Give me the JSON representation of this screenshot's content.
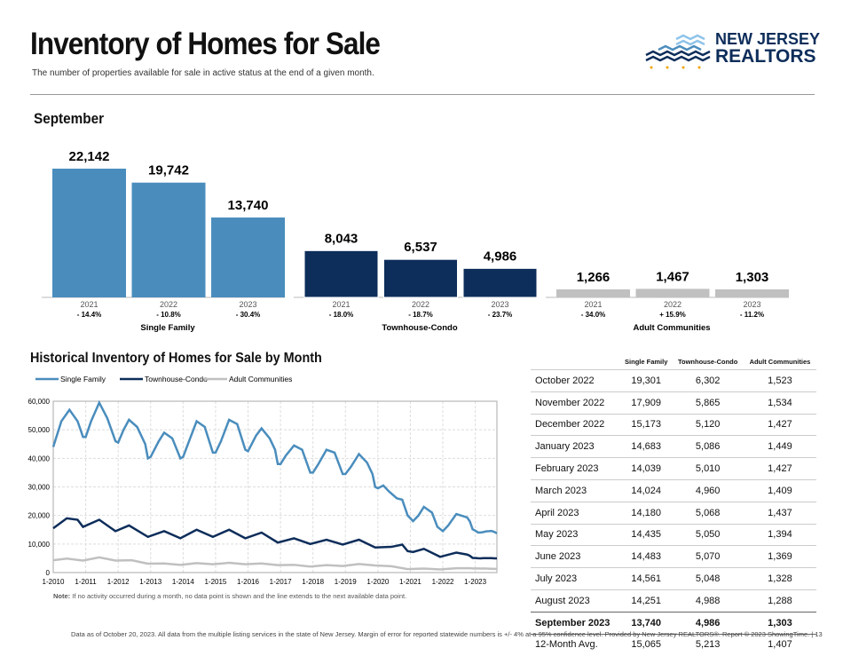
{
  "header": {
    "title": "Inventory of Homes for Sale",
    "subtitle": "The number of properties available for sale in active status at the end of a given month.",
    "logo": "NEW JERSEY REALTORS®"
  },
  "logo": {
    "line1": "NEW JERSEY",
    "line2": "REALTORS"
  },
  "colors": {
    "single_family": "#4a8dbd",
    "townhouse": "#0d2d5a",
    "adult": "#c0c0c0"
  },
  "september": {
    "title": "September"
  },
  "chart_data": [
    {
      "type": "bar",
      "title": "September",
      "groups": [
        {
          "name": "Single Family",
          "years": [
            "2021",
            "2022",
            "2023"
          ],
          "values": [
            22142,
            19742,
            13740
          ],
          "labels": [
            "22,142",
            "19,742",
            "13,740"
          ],
          "changes": [
            "- 14.4%",
            "- 10.8%",
            "- 30.4%"
          ]
        },
        {
          "name": "Townhouse-Condo",
          "years": [
            "2021",
            "2022",
            "2023"
          ],
          "values": [
            8043,
            6537,
            4986
          ],
          "labels": [
            "8,043",
            "6,537",
            "4,986"
          ],
          "changes": [
            "- 18.0%",
            "- 18.7%",
            "- 23.7%"
          ]
        },
        {
          "name": "Adult Communities",
          "years": [
            "2021",
            "2022",
            "2023"
          ],
          "values": [
            1266,
            1467,
            1303
          ],
          "labels": [
            "1,266",
            "1,467",
            "1,303"
          ],
          "changes": [
            "- 34.0%",
            "+ 15.9%",
            "- 11.2%"
          ]
        }
      ]
    },
    {
      "type": "line",
      "title": "Historical Inventory of Homes for Sale by Month",
      "ylim": [
        0,
        60000
      ],
      "grid": true,
      "legend": "top-left",
      "yticks": [
        "0",
        "10,000",
        "20,000",
        "30,000",
        "40,000",
        "50,000",
        "60,000"
      ],
      "xticks": [
        "1-2010",
        "1-2011",
        "1-2012",
        "1-2013",
        "1-2014",
        "1-2015",
        "1-2016",
        "1-2017",
        "1-2018",
        "1-2019",
        "1-2020",
        "1-2021",
        "1-2022",
        "1-2023"
      ],
      "note_label": "Note:",
      "note": "If no activity occurred during a month, no data point is shown and the line extends to the next available data point.",
      "series": [
        {
          "name": "Single Family",
          "points": [
            [
              "2010-01",
              44000
            ],
            [
              "2010-04",
              53000
            ],
            [
              "2010-07",
              57000
            ],
            [
              "2010-10",
              53000
            ],
            [
              "2010-12",
              47500
            ],
            [
              "2011-01",
              47500
            ],
            [
              "2011-03",
              53000
            ],
            [
              "2011-06",
              59500
            ],
            [
              "2011-09",
              54000
            ],
            [
              "2011-12",
              46000
            ],
            [
              "2012-01",
              45500
            ],
            [
              "2012-03",
              50000
            ],
            [
              "2012-05",
              53500
            ],
            [
              "2012-08",
              51000
            ],
            [
              "2012-11",
              45000
            ],
            [
              "2012-12",
              40000
            ],
            [
              "2013-01",
              40500
            ],
            [
              "2013-04",
              46000
            ],
            [
              "2013-06",
              49000
            ],
            [
              "2013-09",
              47000
            ],
            [
              "2013-12",
              40000
            ],
            [
              "2014-01",
              40500
            ],
            [
              "2014-04",
              48000
            ],
            [
              "2014-06",
              53000
            ],
            [
              "2014-09",
              51000
            ],
            [
              "2014-11",
              45000
            ],
            [
              "2014-12",
              42000
            ],
            [
              "2015-01",
              42000
            ],
            [
              "2015-03",
              46000
            ],
            [
              "2015-06",
              53500
            ],
            [
              "2015-09",
              52000
            ],
            [
              "2015-12",
              43000
            ],
            [
              "2016-01",
              42500
            ],
            [
              "2016-04",
              48000
            ],
            [
              "2016-06",
              50500
            ],
            [
              "2016-09",
              47000
            ],
            [
              "2016-11",
              43000
            ],
            [
              "2016-12",
              38000
            ],
            [
              "2017-01",
              38000
            ],
            [
              "2017-03",
              41000
            ],
            [
              "2017-06",
              44500
            ],
            [
              "2017-09",
              43000
            ],
            [
              "2017-12",
              35000
            ],
            [
              "2018-01",
              35000
            ],
            [
              "2018-03",
              38000
            ],
            [
              "2018-06",
              43000
            ],
            [
              "2018-09",
              42000
            ],
            [
              "2018-12",
              34500
            ],
            [
              "2019-01",
              34500
            ],
            [
              "2019-03",
              37000
            ],
            [
              "2019-06",
              41500
            ],
            [
              "2019-09",
              38500
            ],
            [
              "2019-11",
              34500
            ],
            [
              "2019-12",
              30000
            ],
            [
              "2020-01",
              29500
            ],
            [
              "2020-03",
              30500
            ],
            [
              "2020-05",
              28500
            ],
            [
              "2020-08",
              26000
            ],
            [
              "2020-10",
              25500
            ],
            [
              "2020-12",
              20000
            ],
            [
              "2021-02",
              18000
            ],
            [
              "2021-04",
              20000
            ],
            [
              "2021-06",
              23000
            ],
            [
              "2021-09",
              21000
            ],
            [
              "2021-11",
              16000
            ],
            [
              "2022-01",
              14500
            ],
            [
              "2022-03",
              16500
            ],
            [
              "2022-06",
              20500
            ],
            [
              "2022-09",
              19600
            ],
            [
              "2022-10",
              19301
            ],
            [
              "2022-11",
              17909
            ],
            [
              "2022-12",
              15173
            ],
            [
              "2023-01",
              14683
            ],
            [
              "2023-02",
              14039
            ],
            [
              "2023-03",
              14024
            ],
            [
              "2023-04",
              14180
            ],
            [
              "2023-05",
              14435
            ],
            [
              "2023-06",
              14483
            ],
            [
              "2023-07",
              14561
            ],
            [
              "2023-08",
              14251
            ],
            [
              "2023-09",
              13740
            ]
          ]
        },
        {
          "name": "Townhouse-Condo",
          "points": [
            [
              "2010-01",
              15500
            ],
            [
              "2010-06",
              19000
            ],
            [
              "2010-10",
              18500
            ],
            [
              "2010-12",
              16000
            ],
            [
              "2011-06",
              18500
            ],
            [
              "2011-12",
              14500
            ],
            [
              "2012-05",
              16500
            ],
            [
              "2012-12",
              12500
            ],
            [
              "2013-06",
              14500
            ],
            [
              "2013-12",
              12000
            ],
            [
              "2014-06",
              15000
            ],
            [
              "2014-12",
              12500
            ],
            [
              "2015-06",
              15000
            ],
            [
              "2015-12",
              12000
            ],
            [
              "2016-06",
              14000
            ],
            [
              "2016-12",
              10500
            ],
            [
              "2017-06",
              12000
            ],
            [
              "2017-12",
              10000
            ],
            [
              "2018-06",
              11500
            ],
            [
              "2018-12",
              9800
            ],
            [
              "2019-06",
              11500
            ],
            [
              "2019-12",
              8800
            ],
            [
              "2020-06",
              9000
            ],
            [
              "2020-10",
              9800
            ],
            [
              "2020-12",
              7500
            ],
            [
              "2021-02",
              7200
            ],
            [
              "2021-06",
              8300
            ],
            [
              "2021-12",
              5500
            ],
            [
              "2022-06",
              7000
            ],
            [
              "2022-10",
              6302
            ],
            [
              "2022-11",
              5865
            ],
            [
              "2022-12",
              5120
            ],
            [
              "2023-01",
              5086
            ],
            [
              "2023-02",
              5010
            ],
            [
              "2023-03",
              4960
            ],
            [
              "2023-04",
              5068
            ],
            [
              "2023-05",
              5050
            ],
            [
              "2023-06",
              5070
            ],
            [
              "2023-07",
              5048
            ],
            [
              "2023-08",
              4988
            ],
            [
              "2023-09",
              4986
            ]
          ]
        },
        {
          "name": "Adult Communities",
          "points": [
            [
              "2010-01",
              4300
            ],
            [
              "2010-06",
              4900
            ],
            [
              "2010-12",
              4200
            ],
            [
              "2011-06",
              5300
            ],
            [
              "2011-12",
              4200
            ],
            [
              "2012-06",
              4300
            ],
            [
              "2012-12",
              3100
            ],
            [
              "2013-06",
              3200
            ],
            [
              "2013-12",
              2700
            ],
            [
              "2014-06",
              3300
            ],
            [
              "2014-12",
              2900
            ],
            [
              "2015-06",
              3400
            ],
            [
              "2015-12",
              2900
            ],
            [
              "2016-06",
              3200
            ],
            [
              "2016-12",
              2600
            ],
            [
              "2017-06",
              2700
            ],
            [
              "2017-12",
              2100
            ],
            [
              "2018-06",
              2600
            ],
            [
              "2018-12",
              2300
            ],
            [
              "2019-06",
              3000
            ],
            [
              "2019-12",
              2500
            ],
            [
              "2020-06",
              2200
            ],
            [
              "2020-12",
              1200
            ],
            [
              "2021-06",
              1400
            ],
            [
              "2021-12",
              1100
            ],
            [
              "2022-06",
              1500
            ],
            [
              "2022-10",
              1523
            ],
            [
              "2022-11",
              1534
            ],
            [
              "2022-12",
              1427
            ],
            [
              "2023-01",
              1449
            ],
            [
              "2023-02",
              1427
            ],
            [
              "2023-03",
              1409
            ],
            [
              "2023-04",
              1437
            ],
            [
              "2023-05",
              1394
            ],
            [
              "2023-06",
              1369
            ],
            [
              "2023-07",
              1328
            ],
            [
              "2023-08",
              1288
            ],
            [
              "2023-09",
              1303
            ]
          ]
        }
      ]
    }
  ],
  "table": {
    "headers": [
      "",
      "Single Family",
      "Townhouse-Condo",
      "Adult Communities"
    ],
    "rows": [
      [
        "October 2022",
        "19,301",
        "6,302",
        "1,523"
      ],
      [
        "November 2022",
        "17,909",
        "5,865",
        "1,534"
      ],
      [
        "December 2022",
        "15,173",
        "5,120",
        "1,427"
      ],
      [
        "January 2023",
        "14,683",
        "5,086",
        "1,449"
      ],
      [
        "February 2023",
        "14,039",
        "5,010",
        "1,427"
      ],
      [
        "March 2023",
        "14,024",
        "4,960",
        "1,409"
      ],
      [
        "April 2023",
        "14,180",
        "5,068",
        "1,437"
      ],
      [
        "May 2023",
        "14,435",
        "5,050",
        "1,394"
      ],
      [
        "June 2023",
        "14,483",
        "5,070",
        "1,369"
      ],
      [
        "July 2023",
        "14,561",
        "5,048",
        "1,328"
      ],
      [
        "August 2023",
        "14,251",
        "4,988",
        "1,288"
      ],
      [
        "September 2023",
        "13,740",
        "4,986",
        "1,303"
      ],
      [
        "12-Month Avg.",
        "15,065",
        "5,213",
        "1,407"
      ]
    ]
  },
  "footer": "Data as of October 20, 2023. All data from the multiple listing services in the state of New Jersey. Margin of error for reported statewide numbers is +/- 4% at a 95% confidence level. Provided by New Jersey REALTORS®. Report © 2023 ShowingTime.  |  13"
}
